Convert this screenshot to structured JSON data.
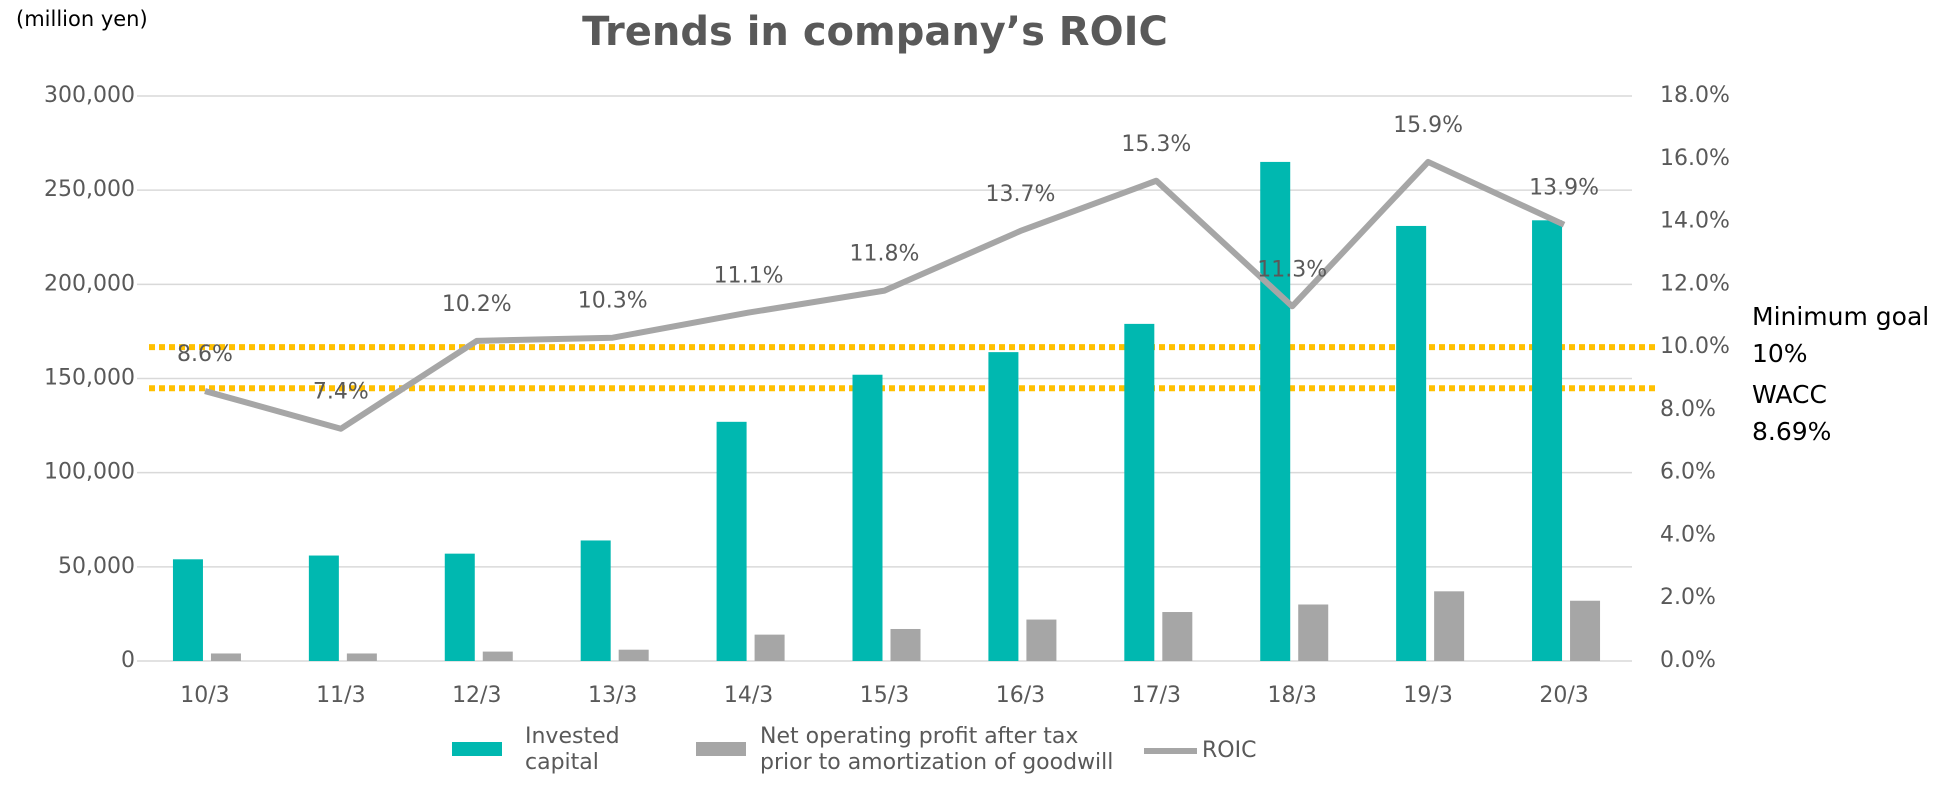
{
  "chart_data": {
    "type": "bar",
    "title": "Trends in company’s ROIC",
    "y_axis_label": "(million yen)",
    "categories": [
      "10/3",
      "11/3",
      "12/3",
      "13/3",
      "14/3",
      "15/3",
      "16/3",
      "17/3",
      "18/3",
      "19/3",
      "20/3"
    ],
    "series": [
      {
        "name": "Invested capital",
        "type": "bar",
        "color": "#00B8B0",
        "values": [
          54000,
          56000,
          57000,
          64000,
          127000,
          152000,
          164000,
          179000,
          265000,
          231000,
          234000
        ]
      },
      {
        "name": "Net operating profit after tax prior to amortization of goodwill",
        "type": "bar",
        "color": "#A6A6A6",
        "values": [
          4000,
          4000,
          5000,
          6000,
          14000,
          17000,
          22000,
          26000,
          30000,
          37000,
          32000
        ]
      },
      {
        "name": "ROIC",
        "type": "line",
        "axis": "y2",
        "color": "#A6A6A6",
        "values": [
          8.6,
          7.4,
          10.2,
          10.3,
          11.1,
          11.8,
          13.7,
          15.3,
          11.3,
          15.9,
          13.9
        ],
        "value_labels": [
          "8.6%",
          "7.4%",
          "10.2%",
          "10.3%",
          "11.1%",
          "11.8%",
          "13.7%",
          "15.3%",
          "11.3%",
          "15.9%",
          "13.9%"
        ]
      }
    ],
    "ylim": [
      0,
      300000
    ],
    "yticks": [
      0,
      {
        "value": 50000,
        "label": "50,000"
      },
      {
        "value": 100000,
        "label": "100,000"
      },
      {
        "value": 150000,
        "label": "150,000"
      },
      {
        "value": 200000,
        "label": "200,000"
      },
      {
        "value": 250000,
        "label": "250,000"
      },
      {
        "value": 300000,
        "label": "300,000"
      }
    ],
    "y2lim": [
      0,
      18
    ],
    "y2ticks": [
      {
        "value": 0,
        "label": "0.0%"
      },
      {
        "value": 2,
        "label": "2.0%"
      },
      {
        "value": 4,
        "label": "4.0%"
      },
      {
        "value": 6,
        "label": "6.0%"
      },
      {
        "value": 8,
        "label": "8.0%"
      },
      {
        "value": 10,
        "label": "10.0%"
      },
      {
        "value": 12,
        "label": "12.0%"
      },
      {
        "value": 14,
        "label": "14.0%"
      },
      {
        "value": 16,
        "label": "16.0%"
      },
      {
        "value": 18,
        "label": "18.0%"
      }
    ],
    "grid": true,
    "legend": "bottom",
    "reference_lines": [
      {
        "label": "Minimum goal 10%",
        "value": 10,
        "axis": "y2",
        "color": "#FFC000"
      },
      {
        "label": "WACC 8.69%",
        "value": 8.69,
        "axis": "y2",
        "color": "#FFC000"
      }
    ]
  }
}
